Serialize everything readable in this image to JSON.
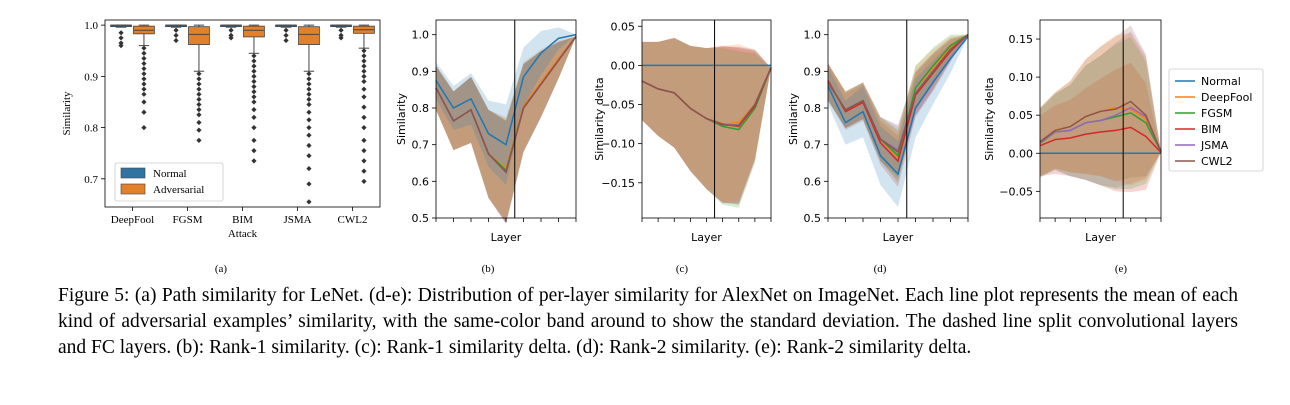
{
  "caption": "Figure 5: (a) Path similarity for LeNet. (d-e): Distribution of per-layer similarity for AlexNet on ImageNet. Each line plot represents the mean of each kind of adversarial examples’ similarity, with the same-color band around to show the standard deviation. The dashed line split convolutional layers and FC layers. (b): Rank-1 similarity. (c): Rank-1 similarity delta. (d): Rank-2 similarity. (e): Rank-2 similarity delta.",
  "legend_e": [
    "Normal",
    "DeepFool",
    "FGSM",
    "BIM",
    "JSMA",
    "CWL2"
  ],
  "colors": {
    "Normal": "#1f77b4",
    "DeepFool": "#ff7f0e",
    "FGSM": "#2ca02c",
    "BIM": "#d62728",
    "JSMA": "#9467bd",
    "CWL2": "#8c564b",
    "box_normal": "#3274a1",
    "box_adv": "#e1812c"
  },
  "chart_data": [
    {
      "panel": "(a)",
      "type": "box",
      "xlabel": "Attack",
      "ylabel": "Similarity",
      "categories": [
        "DeepFool",
        "FGSM",
        "BIM",
        "JSMA",
        "CWL2"
      ],
      "yticks": [
        "0.7",
        "0.8",
        "0.9",
        "1.0"
      ],
      "ylim": [
        0.645,
        1.01
      ],
      "legend": [
        "Normal",
        "Adversarial"
      ],
      "series": [
        {
          "name": "Normal",
          "boxes": [
            {
              "q1": 1.0,
              "median": 1.0,
              "q3": 1.0,
              "whislo": 0.996,
              "whishi": 1.0,
              "fliers": [
                0.985,
                0.975,
                0.965,
                0.96
              ]
            },
            {
              "q1": 1.0,
              "median": 1.0,
              "q3": 1.0,
              "whislo": 0.996,
              "whishi": 1.0,
              "fliers": [
                0.99,
                0.98,
                0.97
              ]
            },
            {
              "q1": 1.0,
              "median": 1.0,
              "q3": 1.0,
              "whislo": 0.996,
              "whishi": 1.0,
              "fliers": [
                0.99,
                0.98,
                0.975
              ]
            },
            {
              "q1": 1.0,
              "median": 1.0,
              "q3": 1.0,
              "whislo": 0.996,
              "whishi": 1.0,
              "fliers": [
                0.99,
                0.98,
                0.97
              ]
            },
            {
              "q1": 1.0,
              "median": 1.0,
              "q3": 1.0,
              "whislo": 0.996,
              "whishi": 1.0,
              "fliers": [
                0.99,
                0.98,
                0.975
              ]
            }
          ]
        },
        {
          "name": "Adversarial",
          "boxes": [
            {
              "q1": 0.983,
              "median": 0.99,
              "q3": 0.998,
              "whislo": 0.96,
              "whishi": 1.0,
              "fliers": [
                0.955,
                0.945,
                0.935,
                0.925,
                0.915,
                0.905,
                0.895,
                0.885,
                0.875,
                0.865,
                0.85,
                0.83,
                0.8
              ]
            },
            {
              "q1": 0.962,
              "median": 0.982,
              "q3": 0.997,
              "whislo": 0.91,
              "whishi": 1.0,
              "fliers": [
                0.905,
                0.895,
                0.885,
                0.875,
                0.865,
                0.855,
                0.845,
                0.835,
                0.825,
                0.81,
                0.795,
                0.775
              ]
            },
            {
              "q1": 0.977,
              "median": 0.99,
              "q3": 0.998,
              "whislo": 0.945,
              "whishi": 1.0,
              "fliers": [
                0.94,
                0.93,
                0.92,
                0.91,
                0.9,
                0.89,
                0.88,
                0.87,
                0.86,
                0.85,
                0.835,
                0.82,
                0.8,
                0.775,
                0.755,
                0.735
              ]
            },
            {
              "q1": 0.962,
              "median": 0.982,
              "q3": 0.997,
              "whislo": 0.91,
              "whishi": 1.0,
              "fliers": [
                0.905,
                0.895,
                0.885,
                0.875,
                0.865,
                0.855,
                0.845,
                0.83,
                0.815,
                0.8,
                0.785,
                0.765,
                0.745,
                0.72,
                0.69,
                0.655
              ]
            },
            {
              "q1": 0.984,
              "median": 0.991,
              "q3": 0.998,
              "whislo": 0.955,
              "whishi": 1.0,
              "fliers": [
                0.95,
                0.94,
                0.93,
                0.92,
                0.91,
                0.9,
                0.89,
                0.875,
                0.86,
                0.84,
                0.82,
                0.8,
                0.775,
                0.755,
                0.735,
                0.715,
                0.695
              ]
            }
          ]
        }
      ]
    },
    {
      "panel": "(b)",
      "type": "line",
      "xlabel": "Layer",
      "ylabel": "Similarity",
      "yticks": [
        "0.5",
        "0.6",
        "0.7",
        "0.8",
        "0.9",
        "1.0"
      ],
      "ylim": [
        0.5,
        1.04
      ],
      "x": [
        0,
        1,
        2,
        3,
        4,
        5,
        6,
        7,
        8
      ],
      "divider_x": 4.5,
      "series": [
        {
          "name": "Normal",
          "values": [
            0.875,
            0.8,
            0.825,
            0.73,
            0.7,
            0.885,
            0.95,
            0.99,
            1.0
          ],
          "band": [
            0.05,
            0.06,
            0.07,
            0.09,
            0.11,
            0.08,
            0.06,
            0.03,
            0.0
          ]
        },
        {
          "name": "DeepFool",
          "values": [
            0.855,
            0.765,
            0.795,
            0.675,
            0.635,
            0.805,
            0.87,
            0.935,
            0.995
          ],
          "band": [
            0.06,
            0.08,
            0.09,
            0.12,
            0.14,
            0.12,
            0.09,
            0.05,
            0.0
          ]
        },
        {
          "name": "FGSM",
          "values": [
            0.855,
            0.765,
            0.795,
            0.675,
            0.63,
            0.8,
            0.865,
            0.93,
            0.995
          ],
          "band": [
            0.06,
            0.08,
            0.09,
            0.12,
            0.14,
            0.12,
            0.09,
            0.05,
            0.0
          ]
        },
        {
          "name": "BIM",
          "values": [
            0.855,
            0.765,
            0.795,
            0.675,
            0.625,
            0.8,
            0.865,
            0.93,
            0.995
          ],
          "band": [
            0.06,
            0.08,
            0.09,
            0.12,
            0.14,
            0.12,
            0.09,
            0.05,
            0.0
          ]
        },
        {
          "name": "JSMA",
          "values": [
            0.855,
            0.765,
            0.795,
            0.675,
            0.625,
            0.8,
            0.865,
            0.93,
            0.995
          ],
          "band": [
            0.06,
            0.08,
            0.09,
            0.12,
            0.14,
            0.12,
            0.09,
            0.05,
            0.0
          ]
        },
        {
          "name": "CWL2",
          "values": [
            0.855,
            0.765,
            0.795,
            0.675,
            0.625,
            0.8,
            0.865,
            0.93,
            0.995
          ],
          "band": [
            0.06,
            0.08,
            0.09,
            0.12,
            0.14,
            0.12,
            0.09,
            0.05,
            0.0
          ]
        }
      ]
    },
    {
      "panel": "(c)",
      "type": "line",
      "xlabel": "Layer",
      "ylabel": "Similarity delta",
      "yticks": [
        "−0.15",
        "−0.10",
        "−0.05",
        "0.00",
        "0.05"
      ],
      "ytick_values": [
        -0.15,
        -0.1,
        -0.05,
        0.0,
        0.05
      ],
      "ylim": [
        -0.195,
        0.058
      ],
      "x": [
        0,
        1,
        2,
        3,
        4,
        5,
        6,
        7,
        8
      ],
      "divider_x": 4.5,
      "series": [
        {
          "name": "Normal",
          "values": [
            0,
            0,
            0,
            0,
            0,
            0,
            0,
            0,
            0
          ],
          "band": [
            0,
            0,
            0,
            0,
            0,
            0,
            0,
            0,
            0
          ]
        },
        {
          "name": "DeepFool",
          "values": [
            -0.02,
            -0.03,
            -0.035,
            -0.055,
            -0.068,
            -0.075,
            -0.073,
            -0.05,
            -0.003
          ],
          "band": [
            0.05,
            0.06,
            0.07,
            0.08,
            0.09,
            0.1,
            0.1,
            0.07,
            0.0
          ]
        },
        {
          "name": "FGSM",
          "values": [
            -0.02,
            -0.03,
            -0.035,
            -0.055,
            -0.068,
            -0.078,
            -0.082,
            -0.055,
            -0.003
          ],
          "band": [
            0.05,
            0.06,
            0.07,
            0.08,
            0.09,
            0.1,
            0.1,
            0.07,
            0.0
          ]
        },
        {
          "name": "BIM",
          "values": [
            -0.02,
            -0.03,
            -0.035,
            -0.055,
            -0.068,
            -0.075,
            -0.078,
            -0.052,
            -0.003
          ],
          "band": [
            0.05,
            0.06,
            0.07,
            0.08,
            0.09,
            0.1,
            0.1,
            0.07,
            0.0
          ]
        },
        {
          "name": "JSMA",
          "values": [
            -0.02,
            -0.03,
            -0.035,
            -0.055,
            -0.068,
            -0.076,
            -0.076,
            -0.05,
            -0.003
          ],
          "band": [
            0.05,
            0.06,
            0.07,
            0.08,
            0.09,
            0.1,
            0.1,
            0.07,
            0.0
          ]
        },
        {
          "name": "CWL2",
          "values": [
            -0.02,
            -0.03,
            -0.035,
            -0.055,
            -0.068,
            -0.076,
            -0.077,
            -0.05,
            -0.003
          ],
          "band": [
            0.05,
            0.06,
            0.07,
            0.08,
            0.09,
            0.1,
            0.1,
            0.07,
            0.0
          ]
        }
      ]
    },
    {
      "panel": "(d)",
      "type": "line",
      "xlabel": "Layer",
      "ylabel": "Similarity",
      "yticks": [
        "0.5",
        "0.6",
        "0.7",
        "0.8",
        "0.9",
        "1.0"
      ],
      "ylim": [
        0.5,
        1.04
      ],
      "x": [
        0,
        1,
        2,
        3,
        4,
        5,
        6,
        7,
        8
      ],
      "divider_x": 4.5,
      "series": [
        {
          "name": "Normal",
          "values": [
            0.86,
            0.76,
            0.79,
            0.67,
            0.62,
            0.8,
            0.87,
            0.935,
            0.995
          ],
          "band": [
            0.05,
            0.06,
            0.07,
            0.08,
            0.09,
            0.08,
            0.06,
            0.04,
            0.0
          ]
        },
        {
          "name": "DeepFool",
          "values": [
            0.87,
            0.795,
            0.82,
            0.715,
            0.665,
            0.855,
            0.91,
            0.965,
            1.0
          ],
          "band": [
            0.05,
            0.05,
            0.05,
            0.06,
            0.07,
            0.06,
            0.05,
            0.03,
            0.0
          ]
        },
        {
          "name": "FGSM",
          "values": [
            0.87,
            0.795,
            0.82,
            0.715,
            0.67,
            0.855,
            0.915,
            0.97,
            1.0
          ],
          "band": [
            0.05,
            0.05,
            0.05,
            0.06,
            0.07,
            0.06,
            0.05,
            0.03,
            0.0
          ]
        },
        {
          "name": "BIM",
          "values": [
            0.875,
            0.79,
            0.815,
            0.705,
            0.655,
            0.835,
            0.895,
            0.955,
            1.0
          ],
          "band": [
            0.05,
            0.05,
            0.05,
            0.06,
            0.07,
            0.06,
            0.05,
            0.03,
            0.0
          ]
        },
        {
          "name": "JSMA",
          "values": [
            0.87,
            0.795,
            0.82,
            0.715,
            0.685,
            0.84,
            0.9,
            0.96,
            1.0
          ],
          "band": [
            0.05,
            0.05,
            0.05,
            0.06,
            0.07,
            0.06,
            0.05,
            0.03,
            0.0
          ]
        },
        {
          "name": "CWL2",
          "values": [
            0.87,
            0.795,
            0.82,
            0.715,
            0.68,
            0.84,
            0.9,
            0.96,
            1.0
          ],
          "band": [
            0.05,
            0.05,
            0.05,
            0.06,
            0.07,
            0.06,
            0.05,
            0.03,
            0.0
          ]
        }
      ]
    },
    {
      "panel": "(e)",
      "type": "line",
      "xlabel": "Layer",
      "ylabel": "Similarity delta",
      "yticks": [
        "−0.05",
        "0.00",
        "0.05",
        "0.10",
        "0.15"
      ],
      "ytick_values": [
        -0.05,
        0.0,
        0.05,
        0.1,
        0.15
      ],
      "ylim": [
        -0.085,
        0.175
      ],
      "x": [
        0,
        1,
        2,
        3,
        4,
        5,
        6,
        7,
        8
      ],
      "divider_x": 5.5,
      "series": [
        {
          "name": "Normal",
          "values": [
            0,
            0,
            0,
            0,
            0,
            0,
            0,
            0,
            0
          ],
          "band": [
            0,
            0,
            0,
            0,
            0,
            0,
            0,
            0,
            0
          ]
        },
        {
          "name": "DeepFool",
          "values": [
            0.015,
            0.03,
            0.035,
            0.048,
            0.055,
            0.06,
            0.058,
            0.045,
            0.002
          ],
          "band": [
            0.045,
            0.05,
            0.06,
            0.075,
            0.085,
            0.095,
            0.1,
            0.08,
            0.0
          ]
        },
        {
          "name": "FGSM",
          "values": [
            0.013,
            0.028,
            0.03,
            0.04,
            0.043,
            0.048,
            0.053,
            0.04,
            0.002
          ],
          "band": [
            0.045,
            0.05,
            0.06,
            0.075,
            0.085,
            0.095,
            0.1,
            0.08,
            0.0
          ]
        },
        {
          "name": "BIM",
          "values": [
            0.01,
            0.018,
            0.02,
            0.025,
            0.028,
            0.03,
            0.034,
            0.022,
            0.001
          ],
          "band": [
            0.04,
            0.045,
            0.05,
            0.06,
            0.07,
            0.08,
            0.085,
            0.07,
            0.0
          ]
        },
        {
          "name": "JSMA",
          "values": [
            0.014,
            0.028,
            0.03,
            0.04,
            0.043,
            0.05,
            0.06,
            0.048,
            0.002
          ],
          "band": [
            0.045,
            0.05,
            0.06,
            0.075,
            0.085,
            0.095,
            0.1,
            0.08,
            0.0
          ]
        },
        {
          "name": "CWL2",
          "values": [
            0.015,
            0.03,
            0.035,
            0.048,
            0.055,
            0.058,
            0.068,
            0.05,
            0.002
          ],
          "band": [
            0.045,
            0.05,
            0.06,
            0.075,
            0.085,
            0.095,
            0.1,
            0.08,
            0.0
          ]
        }
      ]
    }
  ]
}
